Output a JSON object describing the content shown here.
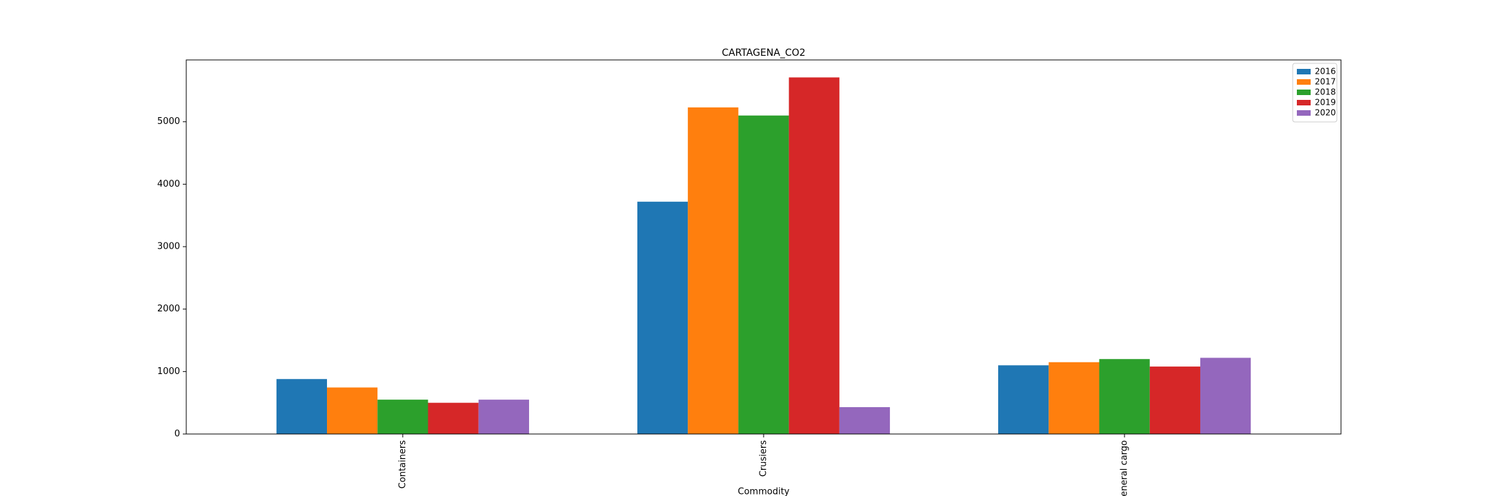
{
  "chart_data": {
    "type": "bar",
    "title": "CARTAGENA_CO2",
    "x_label": "Commodity",
    "categories": [
      "Containers",
      "Crusiers",
      "General cargo"
    ],
    "series": [
      {
        "name": "2016",
        "color": "#1f77b4",
        "values": [
          880,
          3720,
          1100
        ]
      },
      {
        "name": "2017",
        "color": "#ff7f0e",
        "values": [
          745,
          5230,
          1150
        ]
      },
      {
        "name": "2018",
        "color": "#2ca02c",
        "values": [
          550,
          5100,
          1200
        ]
      },
      {
        "name": "2019",
        "color": "#d62728",
        "values": [
          500,
          5710,
          1080
        ]
      },
      {
        "name": "2020",
        "color": "#9467bd",
        "values": [
          550,
          430,
          1220
        ]
      }
    ],
    "ylim": [
      0,
      5990
    ],
    "yticks": [
      0,
      1000,
      2000,
      3000,
      4000,
      5000
    ],
    "legend": "upper right"
  }
}
